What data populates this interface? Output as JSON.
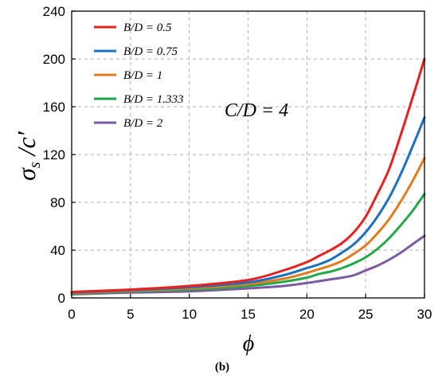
{
  "chart_data": {
    "type": "line",
    "title": "",
    "annotation": "C/D = 4",
    "caption": "(b)",
    "xlabel": "ϕ",
    "ylabel": {
      "main": "σ",
      "sub": "s",
      "rest": " /c′"
    },
    "xlim": [
      0,
      30
    ],
    "ylim": [
      0,
      240
    ],
    "xticks": [
      0,
      5,
      10,
      15,
      20,
      25,
      30
    ],
    "yticks": [
      0,
      40,
      80,
      120,
      160,
      200,
      240
    ],
    "grid": true,
    "legend_position": "top-left",
    "x": [
      0,
      5,
      10,
      15,
      18,
      20,
      21,
      22,
      23,
      24,
      25,
      26,
      27,
      28,
      29,
      30
    ],
    "series": [
      {
        "name": "B/D = 0.5",
        "color": "#e8201e",
        "values": [
          5,
          7,
          10,
          15,
          23,
          30,
          35,
          40,
          46,
          55,
          68,
          87,
          108,
          137,
          168,
          200
        ]
      },
      {
        "name": "B/D = 0.75",
        "color": "#1f6fbf",
        "values": [
          4.5,
          6.5,
          9,
          13,
          19,
          25,
          28,
          32,
          38,
          45,
          55,
          68,
          84,
          104,
          127,
          151
        ]
      },
      {
        "name": "B/D = 1",
        "color": "#e07b1e",
        "values": [
          4,
          6,
          8,
          11.5,
          16,
          21,
          24,
          27,
          31,
          37,
          44,
          54,
          66,
          81,
          98,
          117
        ]
      },
      {
        "name": "B/D = 1.333",
        "color": "#22a84a",
        "values": [
          3.5,
          5.5,
          7,
          10,
          13.5,
          17,
          20,
          22,
          25,
          29,
          34,
          41,
          50,
          61,
          73,
          87
        ]
      },
      {
        "name": "B/D = 2",
        "color": "#7b5aa0",
        "values": [
          3,
          4.5,
          5.5,
          8,
          10,
          12.5,
          14,
          15.5,
          17,
          19,
          23,
          27,
          32,
          38,
          45,
          52
        ]
      }
    ]
  }
}
